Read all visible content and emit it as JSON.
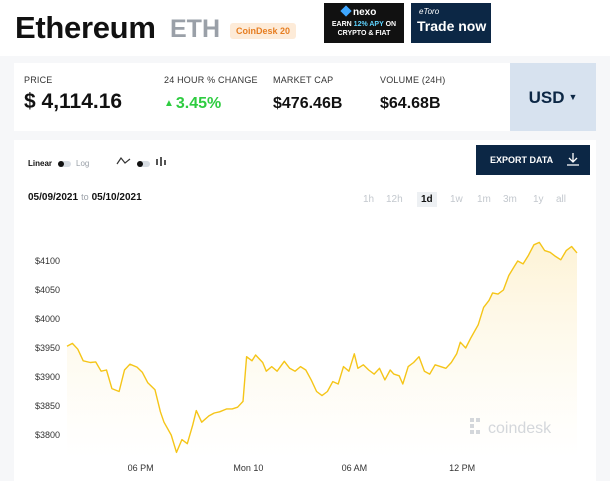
{
  "coin": {
    "name": "Ethereum",
    "symbol": "ETH",
    "badge": "CoinDesk 20"
  },
  "ads": {
    "nexo": {
      "brand": "nexo",
      "line1_a": "EARN ",
      "line1_hl": "12% APY",
      "line1_b": " ON",
      "line2": "CRYPTO & FIAT"
    },
    "etoro": {
      "brand": "eToro",
      "cta": "Trade now"
    }
  },
  "stats": {
    "price": {
      "label": "PRICE",
      "value": "$ 4,114.16"
    },
    "change": {
      "label": "24 HOUR % CHANGE",
      "value": "3.45%"
    },
    "market_cap": {
      "label": "MARKET CAP",
      "value": "$476.46B"
    },
    "volume": {
      "label": "VOLUME (24H)",
      "value": "$64.68B"
    },
    "currency": "USD"
  },
  "chart_controls": {
    "linear_label": "Linear",
    "log_label": "Log",
    "chart_type_icons": [
      "line-chart-icon",
      "candlestick-icon"
    ],
    "export_label": "EXPORT DATA",
    "date_from": "05/09/2021",
    "date_to_sep": "to",
    "date_to": "05/10/2021",
    "ranges": [
      "1h",
      "12h",
      "1d",
      "1w",
      "1m",
      "3m",
      "1y",
      "all"
    ],
    "active_range": "1d"
  },
  "colors": {
    "line": "#f5c518",
    "fill": "#fdf3d6",
    "up": "#2ecc40",
    "navy": "#0c2745"
  },
  "chart_data": {
    "type": "area",
    "title": "",
    "xlabel": "",
    "ylabel": "",
    "ylim": [
      3775,
      4140
    ],
    "yticks": [
      "$4100",
      "$4050",
      "$4000",
      "$3950",
      "$3900",
      "$3850",
      "$3800"
    ],
    "ytick_values": [
      4100,
      4050,
      4000,
      3950,
      3900,
      3850,
      3800
    ],
    "xticks": [
      "06 PM",
      "Mon 10",
      "06 AM",
      "12 PM"
    ],
    "xtick_positions": [
      4.1,
      10.1,
      16.0,
      22.0
    ],
    "x_unit": "hours since 14:00",
    "watermark": "coindesk",
    "series": [
      {
        "values": [
          [
            0.0,
            3953
          ],
          [
            0.3,
            3958
          ],
          [
            0.6,
            3948
          ],
          [
            0.9,
            3928
          ],
          [
            1.3,
            3925
          ],
          [
            1.6,
            3926
          ],
          [
            1.9,
            3910
          ],
          [
            2.2,
            3912
          ],
          [
            2.5,
            3880
          ],
          [
            2.9,
            3875
          ],
          [
            3.2,
            3912
          ],
          [
            3.5,
            3922
          ],
          [
            3.9,
            3917
          ],
          [
            4.2,
            3908
          ],
          [
            4.5,
            3890
          ],
          [
            4.9,
            3878
          ],
          [
            5.2,
            3840
          ],
          [
            5.4,
            3822
          ],
          [
            5.8,
            3800
          ],
          [
            6.1,
            3770
          ],
          [
            6.4,
            3792
          ],
          [
            6.7,
            3785
          ],
          [
            7.0,
            3817
          ],
          [
            7.2,
            3842
          ],
          [
            7.5,
            3822
          ],
          [
            7.9,
            3833
          ],
          [
            8.2,
            3838
          ],
          [
            8.5,
            3840
          ],
          [
            8.9,
            3845
          ],
          [
            9.2,
            3845
          ],
          [
            9.5,
            3848
          ],
          [
            9.8,
            3858
          ],
          [
            10.0,
            3935
          ],
          [
            10.3,
            3928
          ],
          [
            10.5,
            3938
          ],
          [
            10.9,
            3925
          ],
          [
            11.1,
            3910
          ],
          [
            11.4,
            3918
          ],
          [
            11.7,
            3910
          ],
          [
            12.1,
            3927
          ],
          [
            12.4,
            3915
          ],
          [
            12.7,
            3910
          ],
          [
            13.0,
            3918
          ],
          [
            13.3,
            3912
          ],
          [
            13.6,
            3895
          ],
          [
            13.9,
            3875
          ],
          [
            14.2,
            3868
          ],
          [
            14.5,
            3875
          ],
          [
            14.8,
            3892
          ],
          [
            15.1,
            3888
          ],
          [
            15.4,
            3918
          ],
          [
            15.7,
            3910
          ],
          [
            16.0,
            3940
          ],
          [
            16.2,
            3915
          ],
          [
            16.5,
            3921
          ],
          [
            16.8,
            3912
          ],
          [
            17.1,
            3905
          ],
          [
            17.4,
            3915
          ],
          [
            17.7,
            3895
          ],
          [
            18.0,
            3912
          ],
          [
            18.2,
            3905
          ],
          [
            18.5,
            3902
          ],
          [
            18.7,
            3888
          ],
          [
            19.0,
            3918
          ],
          [
            19.3,
            3925
          ],
          [
            19.6,
            3935
          ],
          [
            19.9,
            3910
          ],
          [
            20.2,
            3905
          ],
          [
            20.5,
            3921
          ],
          [
            20.8,
            3918
          ],
          [
            21.1,
            3915
          ],
          [
            21.4,
            3925
          ],
          [
            21.7,
            3940
          ],
          [
            21.9,
            3960
          ],
          [
            22.2,
            3950
          ],
          [
            22.5,
            3968
          ],
          [
            22.9,
            3990
          ],
          [
            23.2,
            4020
          ],
          [
            23.5,
            4032
          ],
          [
            23.7,
            4045
          ],
          [
            24.0,
            4043
          ],
          [
            24.3,
            4050
          ],
          [
            24.6,
            4075
          ],
          [
            24.9,
            4090
          ],
          [
            25.1,
            4100
          ],
          [
            25.4,
            4095
          ],
          [
            25.7,
            4110
          ],
          [
            26.0,
            4128
          ],
          [
            26.3,
            4132
          ],
          [
            26.6,
            4118
          ],
          [
            26.9,
            4115
          ],
          [
            27.2,
            4108
          ],
          [
            27.5,
            4102
          ],
          [
            27.8,
            4118
          ],
          [
            28.1,
            4125
          ],
          [
            28.4,
            4114
          ]
        ]
      }
    ]
  }
}
